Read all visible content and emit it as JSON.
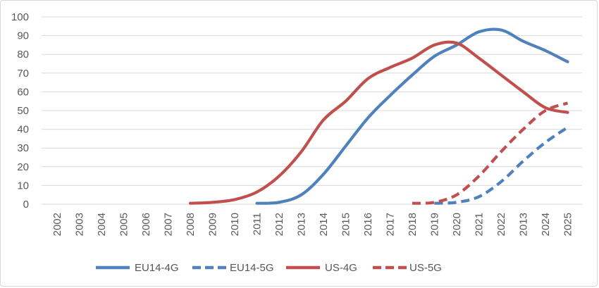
{
  "chart_data": {
    "type": "line",
    "title": "",
    "xlabel": "",
    "ylabel": "",
    "ylim": [
      0,
      100
    ],
    "y_ticks": [
      0,
      10,
      20,
      30,
      40,
      50,
      60,
      70,
      80,
      90,
      100
    ],
    "grid": "horizontal",
    "grid_color": "#d9d9d9",
    "axis_text_color": "#595959",
    "legend_position": "bottom",
    "categories": [
      "2002",
      "2003",
      "2004",
      "2005",
      "2006",
      "2007",
      "2008",
      "2009",
      "2010",
      "2011",
      "2012",
      "2013",
      "2014",
      "2015",
      "2016",
      "2017",
      "2018",
      "2019",
      "2020",
      "2021",
      "2022",
      "2013",
      "2024",
      "2025"
    ],
    "series": [
      {
        "name": "EU14-4G",
        "color": "#4F81BD",
        "line_style": "solid",
        "values": [
          null,
          null,
          null,
          null,
          null,
          null,
          null,
          null,
          null,
          0.5,
          1,
          5,
          16,
          31,
          46,
          58,
          69,
          79,
          85,
          92,
          93,
          87,
          82,
          76
        ]
      },
      {
        "name": "EU14-5G",
        "color": "#4F81BD",
        "line_style": "dashed",
        "values": [
          null,
          null,
          null,
          null,
          null,
          null,
          null,
          null,
          null,
          null,
          null,
          null,
          null,
          null,
          null,
          null,
          null,
          0.5,
          1,
          4,
          12,
          23,
          33,
          41
        ]
      },
      {
        "name": "US-4G",
        "color": "#C0504D",
        "line_style": "solid",
        "values": [
          null,
          null,
          null,
          null,
          null,
          null,
          0.5,
          1,
          2.5,
          6.5,
          15,
          28,
          45,
          55,
          67,
          73,
          78,
          85,
          86,
          78,
          69,
          60,
          51.5,
          49
        ]
      },
      {
        "name": "US-5G",
        "color": "#C0504D",
        "line_style": "dashed",
        "values": [
          null,
          null,
          null,
          null,
          null,
          null,
          null,
          null,
          null,
          null,
          null,
          null,
          null,
          null,
          null,
          null,
          0.5,
          1,
          5,
          15,
          28,
          40,
          50,
          54
        ]
      }
    ]
  }
}
